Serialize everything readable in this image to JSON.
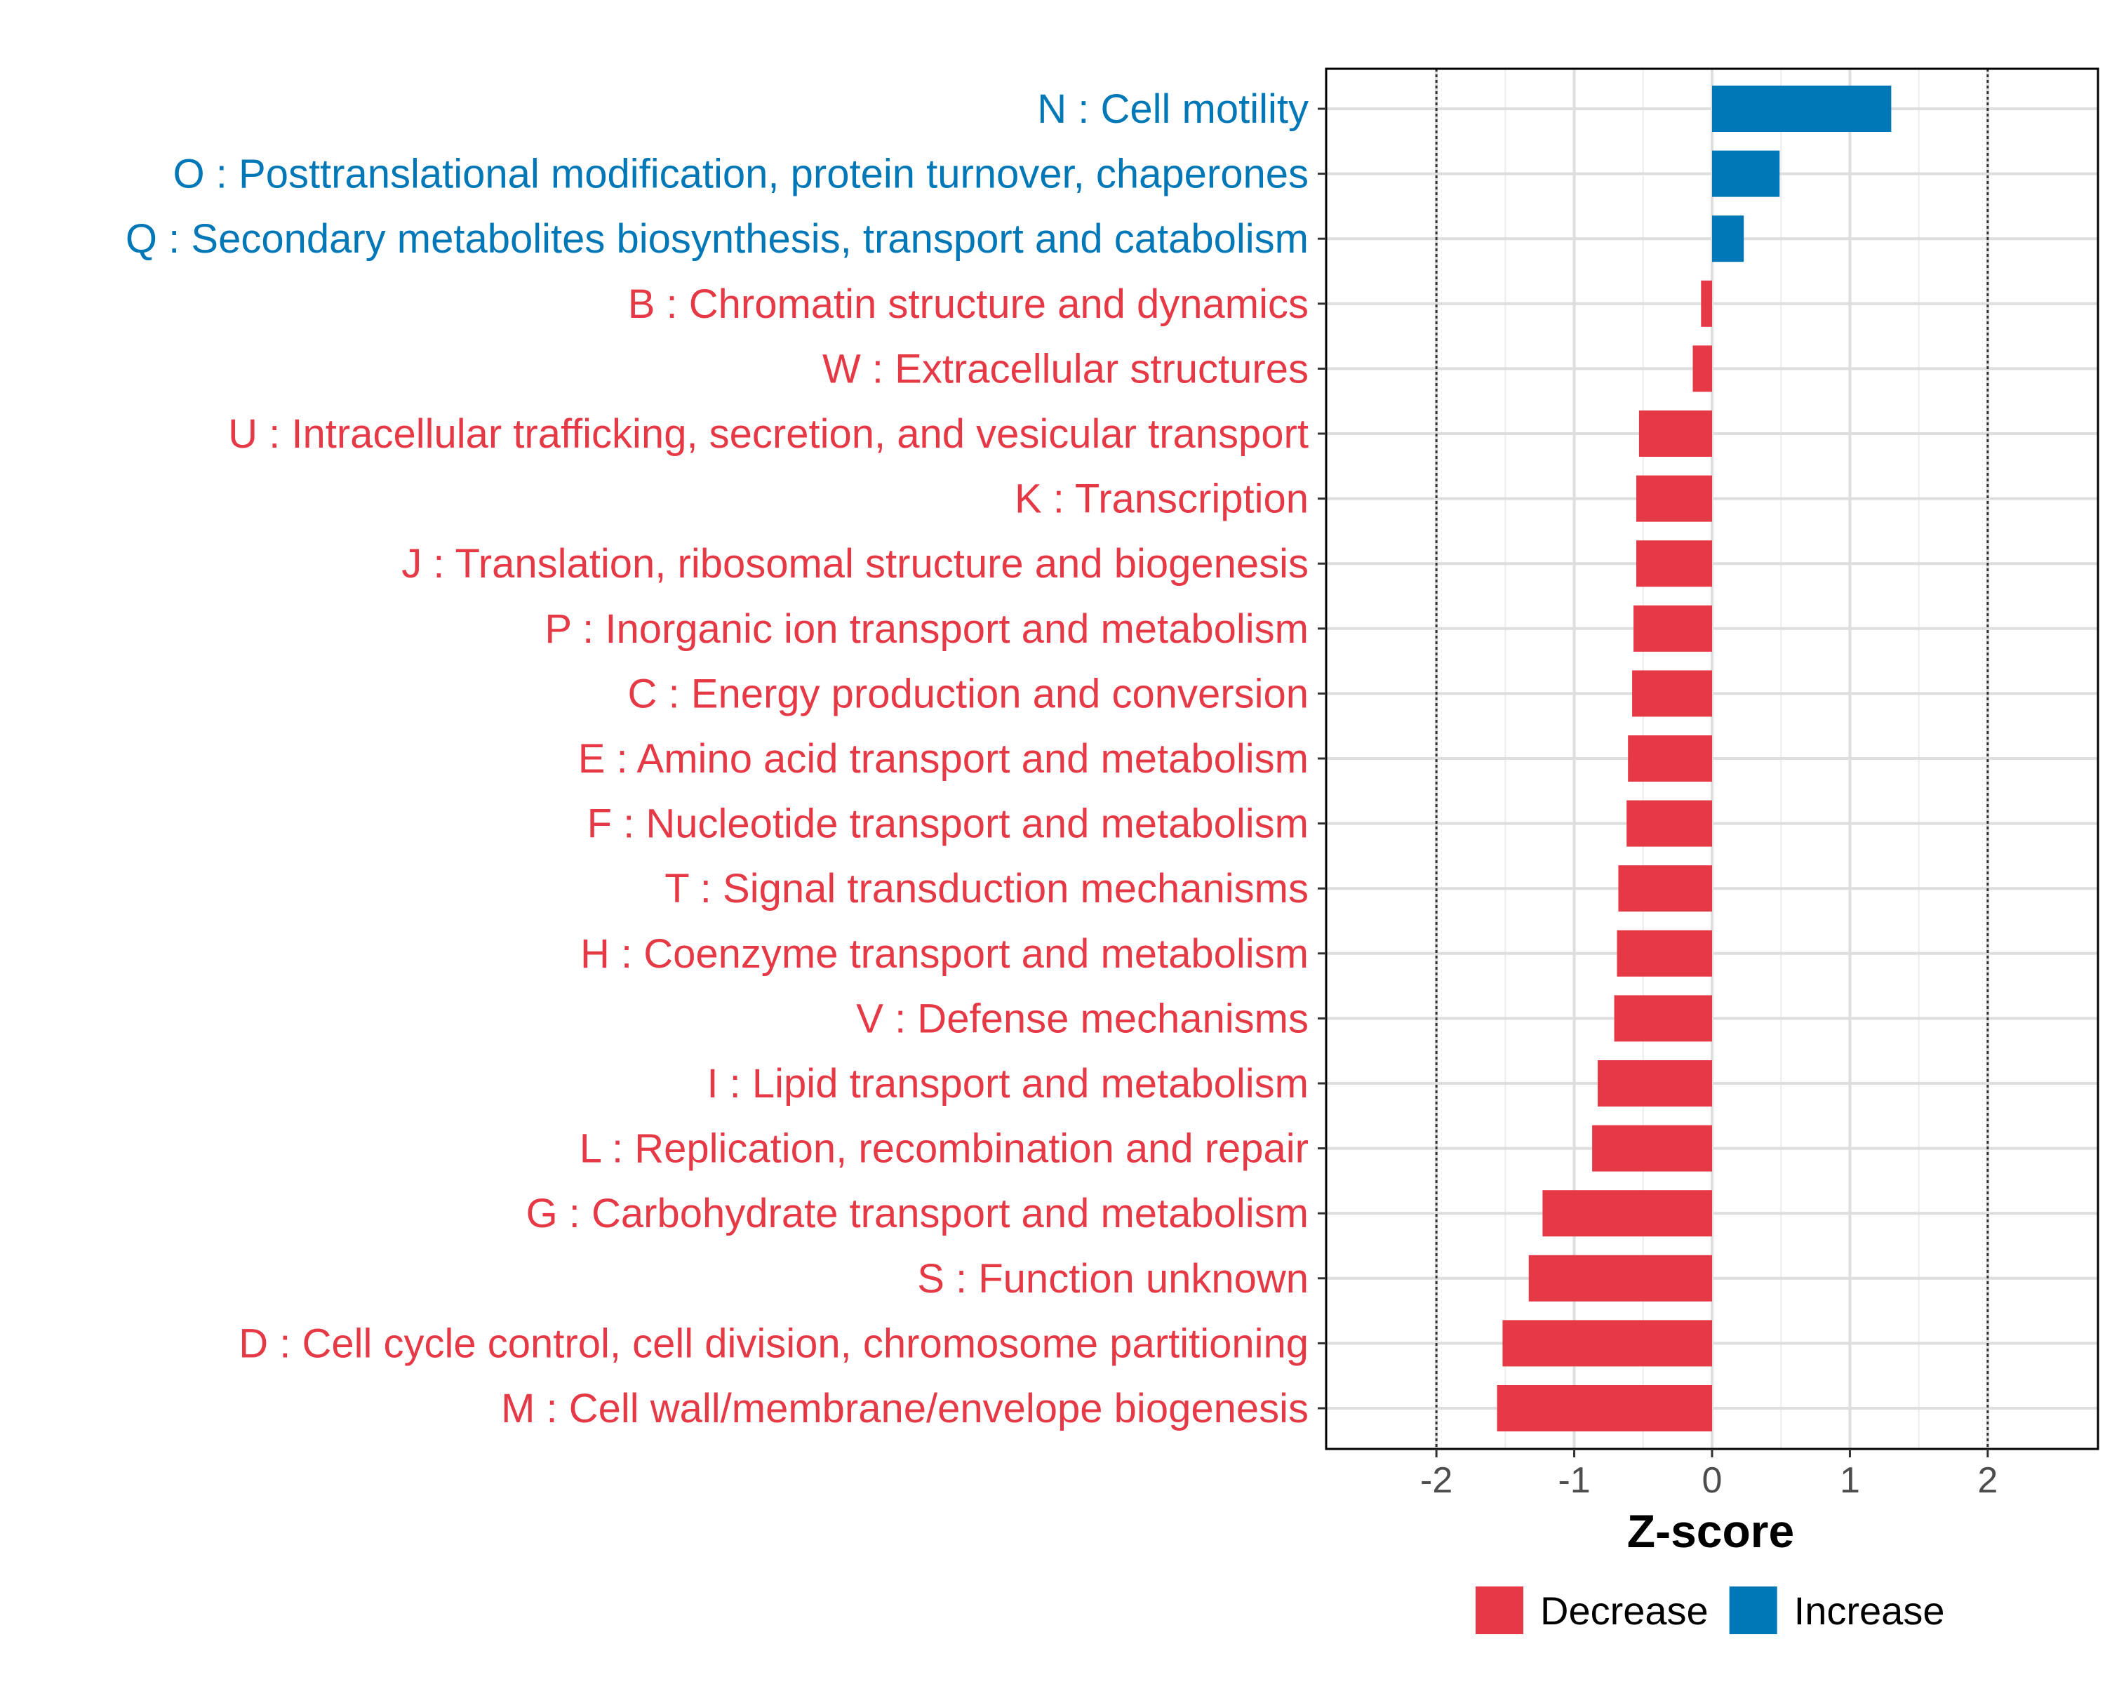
{
  "chart_data": {
    "type": "bar",
    "orientation": "horizontal",
    "xlabel": "Z-score",
    "xlim": [
      -2.8,
      2.8
    ],
    "xticks": [
      -2,
      -1,
      0,
      1,
      2
    ],
    "xtick_labels": [
      "-2",
      "-1",
      "0",
      "1",
      "2"
    ],
    "reference_lines": [
      -2,
      2
    ],
    "grid": true,
    "categories": [
      "N : Cell motility",
      "O : Posttranslational modification, protein turnover, chaperones",
      "Q : Secondary metabolites biosynthesis, transport and catabolism",
      "B : Chromatin structure and dynamics",
      "W : Extracellular structures",
      "U : Intracellular trafficking, secretion, and vesicular transport",
      "K : Transcription",
      "J : Translation, ribosomal structure and biogenesis",
      "P : Inorganic ion transport and metabolism",
      "C : Energy production and conversion",
      "E : Amino acid transport and metabolism",
      "F : Nucleotide transport and metabolism",
      "T : Signal transduction mechanisms",
      "H : Coenzyme transport and metabolism",
      "V : Defense mechanisms",
      "I : Lipid transport and metabolism",
      "L : Replication, recombination and repair",
      "G : Carbohydrate transport and metabolism",
      "S : Function unknown",
      "D : Cell cycle control, cell division, chromosome partitioning",
      "M : Cell wall/membrane/envelope biogenesis"
    ],
    "values": [
      1.3,
      0.49,
      0.23,
      -0.08,
      -0.14,
      -0.53,
      -0.55,
      -0.55,
      -0.57,
      -0.58,
      -0.61,
      -0.62,
      -0.68,
      -0.69,
      -0.71,
      -0.83,
      -0.87,
      -1.23,
      -1.33,
      -1.52,
      -1.56
    ],
    "groups": [
      "Increase",
      "Increase",
      "Increase",
      "Decrease",
      "Decrease",
      "Decrease",
      "Decrease",
      "Decrease",
      "Decrease",
      "Decrease",
      "Decrease",
      "Decrease",
      "Decrease",
      "Decrease",
      "Decrease",
      "Decrease",
      "Decrease",
      "Decrease",
      "Decrease",
      "Decrease",
      "Decrease"
    ],
    "legend": {
      "position": "bottom",
      "entries": [
        {
          "label": "Decrease",
          "color": "#e63946"
        },
        {
          "label": "Increase",
          "color": "#0077b6"
        }
      ]
    }
  }
}
